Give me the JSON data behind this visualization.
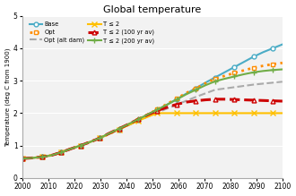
{
  "title": "Global temperature",
  "ylabel": "Temperature (deg C from 1900)",
  "xlim": [
    2000,
    2100
  ],
  "ylim": [
    0,
    5
  ],
  "xticks": [
    2000,
    2010,
    2020,
    2030,
    2040,
    2050,
    2060,
    2070,
    2080,
    2090,
    2100
  ],
  "yticks": [
    0,
    1,
    2,
    3,
    4,
    5
  ],
  "bg_color": "#f2f2f2",
  "series": {
    "Base": {
      "color": "#4BACC6",
      "linestyle": "-",
      "marker": "o",
      "markersize": 3.5,
      "linewidth": 1.5,
      "markerfacecolor": "white",
      "markeredgecolor": "#4BACC6",
      "y": [
        0.6,
        0.62,
        0.65,
        0.7,
        0.79,
        0.9,
        1.0,
        1.11,
        1.23,
        1.36,
        1.5,
        1.64,
        1.78,
        1.94,
        2.1,
        2.26,
        2.43,
        2.6,
        2.77,
        2.94,
        3.1,
        3.26,
        3.42,
        3.58,
        3.74,
        3.88,
        4.0,
        4.12
      ]
    },
    "Opt": {
      "color": "#FF8C00",
      "linestyle": ":",
      "marker": "s",
      "markersize": 3.5,
      "linewidth": 2.0,
      "markerfacecolor": "white",
      "markeredgecolor": "#FF8C00",
      "y": [
        0.6,
        0.62,
        0.65,
        0.7,
        0.79,
        0.9,
        1.0,
        1.11,
        1.23,
        1.36,
        1.5,
        1.65,
        1.8,
        1.96,
        2.12,
        2.28,
        2.45,
        2.62,
        2.76,
        2.92,
        3.06,
        3.15,
        3.24,
        3.32,
        3.4,
        3.46,
        3.51,
        3.55
      ]
    },
    "Opt (alt dam)": {
      "color": "#AAAAAA",
      "linestyle": "--",
      "marker": null,
      "markersize": 0,
      "linewidth": 1.5,
      "markerfacecolor": null,
      "markeredgecolor": null,
      "y": [
        0.6,
        0.62,
        0.65,
        0.7,
        0.79,
        0.9,
        1.0,
        1.11,
        1.23,
        1.36,
        1.5,
        1.63,
        1.76,
        1.89,
        2.02,
        2.14,
        2.26,
        2.38,
        2.5,
        2.61,
        2.72,
        2.76,
        2.8,
        2.84,
        2.88,
        2.91,
        2.94,
        2.97
      ]
    },
    "T ≤ 2": {
      "color": "#FFC000",
      "linestyle": "-",
      "marker": "x",
      "markersize": 5,
      "linewidth": 1.5,
      "markerfacecolor": "#FFC000",
      "markeredgecolor": "#FFC000",
      "y": [
        0.6,
        0.62,
        0.65,
        0.7,
        0.79,
        0.9,
        1.0,
        1.11,
        1.23,
        1.36,
        1.5,
        1.63,
        1.76,
        1.89,
        2.0,
        2.0,
        2.0,
        2.0,
        2.0,
        2.0,
        2.0,
        2.0,
        2.0,
        2.0,
        2.0,
        2.0,
        2.0,
        2.0
      ]
    },
    "T ≤ 2 (100 yr av)": {
      "color": "#CC0000",
      "linestyle": "--",
      "marker": "^",
      "markersize": 3.5,
      "linewidth": 2.2,
      "markerfacecolor": "white",
      "markeredgecolor": "#CC0000",
      "y": [
        0.6,
        0.62,
        0.65,
        0.7,
        0.79,
        0.9,
        1.0,
        1.11,
        1.23,
        1.38,
        1.52,
        1.66,
        1.81,
        1.95,
        2.08,
        2.18,
        2.27,
        2.34,
        2.38,
        2.41,
        2.43,
        2.43,
        2.42,
        2.41,
        2.4,
        2.39,
        2.38,
        2.37
      ]
    },
    "T ≤ 2 (200 yr av)": {
      "color": "#70AD47",
      "linestyle": "-",
      "marker": "+",
      "markersize": 5,
      "linewidth": 1.5,
      "markerfacecolor": "#70AD47",
      "markeredgecolor": "#70AD47",
      "y": [
        0.6,
        0.62,
        0.65,
        0.7,
        0.79,
        0.9,
        1.0,
        1.11,
        1.23,
        1.38,
        1.52,
        1.66,
        1.81,
        1.96,
        2.11,
        2.26,
        2.42,
        2.58,
        2.72,
        2.86,
        2.98,
        3.06,
        3.13,
        3.2,
        3.26,
        3.3,
        3.33,
        3.35
      ]
    }
  },
  "legend_order": [
    "Base",
    "Opt",
    "Opt (alt dam)",
    "T ≤ 2",
    "T ≤ 2 (100 yr av)",
    "T ≤ 2 (200 yr av)"
  ]
}
